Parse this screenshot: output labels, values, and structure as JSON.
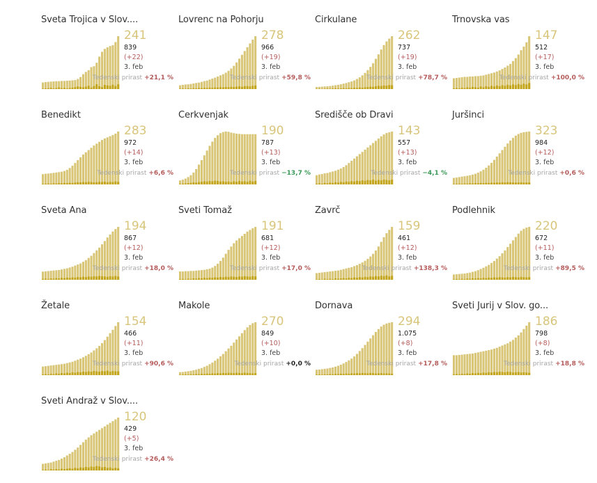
{
  "date_label": "3. feb",
  "growth_label": "Tedenski prirast",
  "colors": {
    "area": "#d8c576",
    "bars": "#c2a51a",
    "big_number": "#d8c57b",
    "growth_up": "#b55a5a",
    "growth_down": "#3a9a58"
  },
  "chart_data": [
    {
      "type": "area",
      "title": "Sveta Trojica v Slov....",
      "active": 241,
      "total": "839",
      "delta": "(+22)",
      "date": "3. feb",
      "growth": "+21,1 %",
      "trend": "up",
      "series": [
        30,
        32,
        33,
        34,
        35,
        36,
        36,
        37,
        37,
        38,
        39,
        40,
        41,
        46,
        55,
        68,
        78,
        86,
        100,
        104,
        120,
        148,
        170,
        183,
        190,
        196,
        200,
        214,
        241
      ],
      "new_cases": [
        2,
        3,
        4,
        6,
        3,
        5,
        8,
        4,
        6,
        3,
        5,
        7,
        9,
        12,
        10,
        8,
        11,
        15,
        7,
        14,
        22,
        13,
        9,
        19,
        17,
        15,
        20,
        14,
        22
      ]
    },
    {
      "type": "area",
      "title": "Lovrenc na Pohorju",
      "active": 278,
      "total": "966",
      "delta": "(+19)",
      "date": "3. feb",
      "growth": "+59,8 %",
      "trend": "up",
      "series": [
        20,
        22,
        24,
        25,
        27,
        30,
        32,
        34,
        38,
        42,
        45,
        50,
        55,
        60,
        66,
        72,
        78,
        86,
        96,
        108,
        122,
        140,
        160,
        180,
        200,
        220,
        240,
        260,
        278
      ],
      "new_cases": [
        2,
        3,
        2,
        4,
        3,
        5,
        4,
        6,
        5,
        7,
        6,
        8,
        7,
        9,
        8,
        10,
        9,
        11,
        10,
        12,
        11,
        13,
        14,
        12,
        15,
        16,
        14,
        17,
        19
      ]
    },
    {
      "type": "area",
      "title": "Cirkulane",
      "active": 262,
      "total": "737",
      "delta": "(+19)",
      "date": "3. feb",
      "growth": "+78,7 %",
      "trend": "up",
      "series": [
        10,
        11,
        12,
        13,
        14,
        15,
        17,
        19,
        21,
        24,
        27,
        30,
        34,
        38,
        43,
        50,
        58,
        68,
        80,
        94,
        110,
        128,
        150,
        172,
        196,
        218,
        236,
        250,
        262
      ],
      "new_cases": [
        1,
        2,
        1,
        2,
        3,
        2,
        3,
        4,
        3,
        4,
        5,
        4,
        6,
        5,
        7,
        6,
        8,
        7,
        9,
        10,
        12,
        11,
        14,
        16,
        15,
        18,
        17,
        20,
        19
      ]
    },
    {
      "type": "area",
      "title": "Trnovska vas",
      "active": 147,
      "total": "512",
      "delta": "(+17)",
      "date": "3. feb",
      "growth": "+100,0 %",
      "trend": "up",
      "series": [
        30,
        31,
        32,
        33,
        34,
        34,
        35,
        35,
        36,
        36,
        37,
        38,
        40,
        42,
        44,
        46,
        49,
        52,
        56,
        60,
        65,
        70,
        78,
        86,
        96,
        108,
        118,
        130,
        147
      ],
      "new_cases": [
        2,
        3,
        2,
        4,
        3,
        5,
        4,
        6,
        5,
        4,
        7,
        5,
        8,
        6,
        9,
        7,
        10,
        8,
        11,
        9,
        12,
        10,
        13,
        11,
        14,
        12,
        15,
        13,
        17
      ]
    },
    {
      "type": "area",
      "title": "Benedikt",
      "active": 283,
      "total": "972",
      "delta": "(+14)",
      "date": "3. feb",
      "growth": "+6,6 %",
      "trend": "up",
      "series": [
        55,
        57,
        58,
        60,
        62,
        64,
        66,
        68,
        72,
        78,
        88,
        100,
        115,
        130,
        145,
        160,
        172,
        184,
        196,
        208,
        218,
        228,
        238,
        246,
        252,
        258,
        264,
        272,
        283
      ],
      "new_cases": [
        3,
        4,
        5,
        4,
        6,
        5,
        7,
        6,
        8,
        7,
        9,
        8,
        10,
        12,
        11,
        13,
        12,
        14,
        13,
        11,
        12,
        14,
        13,
        15,
        12,
        14,
        13,
        16,
        14
      ]
    },
    {
      "type": "area",
      "title": "Cerkvenjak",
      "active": 190,
      "total": "787",
      "delta": "(+13)",
      "date": "3. feb",
      "growth": "−13,7 %",
      "trend": "down",
      "series": [
        15,
        18,
        22,
        28,
        35,
        45,
        58,
        75,
        92,
        110,
        128,
        146,
        162,
        176,
        186,
        194,
        198,
        200,
        199,
        196,
        194,
        192,
        191,
        190,
        190,
        190,
        190,
        190,
        190
      ],
      "new_cases": [
        2,
        3,
        4,
        5,
        6,
        8,
        7,
        9,
        10,
        12,
        11,
        13,
        12,
        14,
        13,
        11,
        12,
        10,
        11,
        9,
        12,
        10,
        13,
        11,
        12,
        10,
        14,
        11,
        13
      ]
    },
    {
      "type": "area",
      "title": "Središče ob Dravi",
      "active": 143,
      "total": "557",
      "delta": "(+13)",
      "date": "3. feb",
      "growth": "−4,1 %",
      "trend": "down",
      "series": [
        25,
        27,
        28,
        30,
        31,
        33,
        35,
        37,
        40,
        43,
        47,
        52,
        58,
        64,
        70,
        76,
        82,
        88,
        94,
        100,
        106,
        112,
        118,
        124,
        130,
        135,
        139,
        141,
        143
      ],
      "new_cases": [
        2,
        3,
        2,
        4,
        3,
        5,
        4,
        6,
        5,
        7,
        6,
        8,
        7,
        9,
        8,
        10,
        9,
        11,
        10,
        12,
        11,
        13,
        10,
        12,
        11,
        13,
        12,
        11,
        13
      ]
    },
    {
      "type": "area",
      "title": "Juršinci",
      "active": 323,
      "total": "984",
      "delta": "(+12)",
      "date": "3. feb",
      "growth": "+0,6 %",
      "trend": "up",
      "series": [
        40,
        42,
        45,
        48,
        50,
        53,
        56,
        60,
        65,
        72,
        80,
        90,
        102,
        116,
        132,
        150,
        170,
        190,
        210,
        230,
        250,
        268,
        284,
        298,
        308,
        315,
        319,
        321,
        323
      ],
      "new_cases": [
        3,
        4,
        5,
        4,
        6,
        5,
        7,
        6,
        8,
        7,
        9,
        8,
        10,
        9,
        11,
        10,
        12,
        11,
        13,
        12,
        14,
        13,
        12,
        11,
        12,
        13,
        11,
        12,
        12
      ]
    },
    {
      "type": "area",
      "title": "Sveta Ana",
      "active": 194,
      "total": "867",
      "delta": "(+12)",
      "date": "3. feb",
      "growth": "+18,0 %",
      "trend": "up",
      "series": [
        30,
        31,
        32,
        33,
        34,
        35,
        36,
        38,
        40,
        42,
        45,
        48,
        52,
        56,
        60,
        66,
        72,
        80,
        88,
        98,
        108,
        118,
        130,
        142,
        155,
        166,
        177,
        186,
        194
      ],
      "new_cases": [
        3,
        4,
        3,
        5,
        4,
        6,
        5,
        7,
        6,
        8,
        7,
        9,
        8,
        10,
        9,
        11,
        10,
        12,
        11,
        13,
        12,
        14,
        13,
        12,
        11,
        13,
        12,
        14,
        12
      ]
    },
    {
      "type": "area",
      "title": "Sveti Tomaž",
      "active": 191,
      "total": "681",
      "delta": "(+12)",
      "date": "3. feb",
      "growth": "+17,0 %",
      "trend": "up",
      "series": [
        30,
        30,
        31,
        31,
        32,
        32,
        33,
        34,
        35,
        36,
        38,
        40,
        44,
        50,
        58,
        68,
        80,
        94,
        108,
        120,
        132,
        142,
        150,
        158,
        166,
        174,
        180,
        186,
        191
      ],
      "new_cases": [
        2,
        3,
        2,
        4,
        3,
        5,
        4,
        6,
        5,
        7,
        6,
        8,
        7,
        9,
        8,
        10,
        9,
        11,
        10,
        12,
        11,
        10,
        12,
        11,
        13,
        12,
        11,
        13,
        12
      ]
    },
    {
      "type": "area",
      "title": "Zavrč",
      "active": 159,
      "total": "461",
      "delta": "(+12)",
      "date": "3. feb",
      "growth": "+138,3 %",
      "trend": "up",
      "series": [
        20,
        21,
        22,
        23,
        24,
        25,
        26,
        27,
        28,
        30,
        32,
        34,
        36,
        38,
        41,
        44,
        48,
        52,
        57,
        63,
        70,
        78,
        88,
        100,
        114,
        128,
        140,
        150,
        159
      ],
      "new_cases": [
        1,
        2,
        1,
        3,
        2,
        3,
        2,
        4,
        3,
        4,
        5,
        4,
        6,
        5,
        7,
        6,
        8,
        7,
        9,
        8,
        10,
        9,
        11,
        10,
        12,
        11,
        13,
        10,
        12
      ]
    },
    {
      "type": "area",
      "title": "Podlehnik",
      "active": 220,
      "total": "672",
      "delta": "(+11)",
      "date": "3. feb",
      "growth": "+89,5 %",
      "trend": "up",
      "series": [
        22,
        23,
        24,
        25,
        26,
        28,
        30,
        33,
        36,
        40,
        45,
        50,
        56,
        62,
        70,
        78,
        88,
        98,
        110,
        122,
        136,
        150,
        164,
        178,
        192,
        204,
        212,
        217,
        220
      ],
      "new_cases": [
        2,
        3,
        2,
        4,
        3,
        5,
        4,
        6,
        5,
        7,
        6,
        8,
        7,
        9,
        8,
        10,
        9,
        11,
        10,
        9,
        11,
        10,
        12,
        11,
        10,
        12,
        11,
        10,
        11
      ]
    },
    {
      "type": "area",
      "title": "Žetale",
      "active": 154,
      "total": "466",
      "delta": "(+11)",
      "date": "3. feb",
      "growth": "+90,6 %",
      "trend": "up",
      "series": [
        25,
        26,
        27,
        28,
        29,
        30,
        31,
        32,
        33,
        35,
        37,
        39,
        42,
        45,
        48,
        52,
        56,
        61,
        66,
        72,
        78,
        85,
        93,
        102,
        112,
        122,
        132,
        143,
        154
      ],
      "new_cases": [
        2,
        3,
        2,
        4,
        3,
        5,
        4,
        6,
        5,
        7,
        6,
        8,
        7,
        9,
        8,
        10,
        9,
        11,
        10,
        12,
        11,
        10,
        12,
        11,
        13,
        10,
        12,
        11,
        11
      ]
    },
    {
      "type": "area",
      "title": "Makole",
      "active": 270,
      "total": "849",
      "delta": "(+10)",
      "date": "3. feb",
      "growth": "+0,0 %",
      "trend": "flat",
      "series": [
        15,
        16,
        18,
        20,
        22,
        25,
        28,
        32,
        36,
        42,
        48,
        56,
        64,
        74,
        84,
        96,
        108,
        122,
        136,
        150,
        166,
        182,
        198,
        214,
        230,
        244,
        256,
        265,
        270
      ],
      "new_cases": [
        2,
        3,
        4,
        3,
        5,
        4,
        6,
        5,
        7,
        6,
        8,
        7,
        9,
        8,
        10,
        9,
        11,
        10,
        12,
        11,
        10,
        12,
        11,
        10,
        12,
        11,
        10,
        9,
        10
      ]
    },
    {
      "type": "area",
      "title": "Dornava",
      "active": 294,
      "total": "1.075",
      "delta": "(+8)",
      "date": "3. feb",
      "growth": "+17,8 %",
      "trend": "up",
      "series": [
        30,
        31,
        33,
        35,
        37,
        40,
        43,
        47,
        52,
        58,
        65,
        73,
        82,
        92,
        104,
        118,
        134,
        150,
        168,
        186,
        204,
        222,
        240,
        256,
        270,
        280,
        287,
        291,
        294
      ],
      "new_cases": [
        3,
        4,
        3,
        5,
        4,
        6,
        5,
        7,
        6,
        8,
        7,
        9,
        8,
        10,
        9,
        11,
        10,
        12,
        11,
        10,
        12,
        11,
        9,
        10,
        11,
        9,
        10,
        9,
        8
      ]
    },
    {
      "type": "area",
      "title": "Sveti Jurij v Slov. go...",
      "active": 186,
      "total": "798",
      "delta": "(+8)",
      "date": "3. feb",
      "growth": "+18,8 %",
      "trend": "up",
      "series": [
        70,
        70,
        71,
        72,
        73,
        74,
        75,
        76,
        78,
        80,
        82,
        84,
        86,
        88,
        90,
        93,
        96,
        100,
        104,
        108,
        112,
        118,
        124,
        132,
        140,
        150,
        162,
        174,
        186
      ],
      "new_cases": [
        3,
        4,
        3,
        5,
        4,
        6,
        5,
        7,
        6,
        8,
        7,
        9,
        8,
        10,
        9,
        11,
        10,
        12,
        11,
        10,
        12,
        11,
        9,
        10,
        11,
        9,
        10,
        9,
        8
      ]
    },
    {
      "type": "area",
      "title": "Sveti Andraž v Slov....",
      "active": 120,
      "total": "429",
      "delta": "(+5)",
      "date": "3. feb",
      "growth": "+26,4 %",
      "trend": "up",
      "series": [
        15,
        16,
        17,
        18,
        20,
        22,
        24,
        27,
        30,
        34,
        38,
        42,
        47,
        52,
        58,
        64,
        70,
        75,
        80,
        84,
        88,
        92,
        96,
        100,
        104,
        108,
        112,
        116,
        120
      ],
      "new_cases": [
        1,
        2,
        1,
        3,
        2,
        3,
        2,
        4,
        3,
        4,
        5,
        4,
        6,
        5,
        7,
        6,
        8,
        7,
        9,
        8,
        10,
        9,
        7,
        8,
        6,
        7,
        5,
        6,
        5
      ]
    }
  ]
}
